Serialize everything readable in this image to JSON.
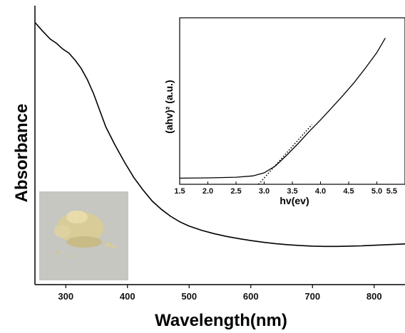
{
  "chart_data": [
    {
      "type": "line",
      "title": "",
      "xlabel": "Wavelength(nm)",
      "ylabel": "Absorbance",
      "xlim": [
        250,
        850
      ],
      "ylim": [
        0,
        1
      ],
      "x_ticks": [
        300,
        400,
        500,
        600,
        700,
        800
      ],
      "y_ticks": [],
      "grid": false,
      "legend": "none",
      "series": [
        {
          "x": [
            250,
            262,
            275,
            285,
            295,
            305,
            315,
            325,
            335,
            345,
            355,
            365,
            380,
            395,
            410,
            425,
            440,
            455,
            470,
            485,
            500,
            520,
            540,
            560,
            580,
            600,
            620,
            640,
            660,
            680,
            700,
            720,
            740,
            760,
            780,
            800,
            820,
            850
          ],
          "y": [
            0.94,
            0.91,
            0.88,
            0.865,
            0.845,
            0.83,
            0.805,
            0.775,
            0.735,
            0.685,
            0.625,
            0.565,
            0.5,
            0.44,
            0.385,
            0.34,
            0.3,
            0.27,
            0.245,
            0.225,
            0.21,
            0.195,
            0.183,
            0.173,
            0.165,
            0.158,
            0.152,
            0.147,
            0.143,
            0.14,
            0.138,
            0.137,
            0.137,
            0.138,
            0.139,
            0.141,
            0.143,
            0.146
          ],
          "color": "#000000"
        }
      ],
      "inset_image": {
        "description_type": "photo",
        "colors": {
          "background": "#c6c7c1",
          "powder": "#d9cc98",
          "powder_highlight": "#efe3b3"
        }
      }
    },
    {
      "type": "line",
      "title": "",
      "xlabel": "hv(ev)",
      "ylabel": "(ahv)² (a.u.)",
      "xlim": [
        1.5,
        5.5
      ],
      "ylim": [
        0,
        1
      ],
      "x_ticks": [
        "1.5",
        "2.0",
        "2.5",
        "3.0",
        "3.5",
        "4.0",
        "4.5",
        "5.0",
        "5.5"
      ],
      "grid": false,
      "legend": "none",
      "series": [
        {
          "style": "solid",
          "x": [
            1.5,
            2.0,
            2.5,
            2.8,
            3.0,
            3.2,
            3.4,
            3.6,
            3.8,
            4.0,
            4.2,
            4.4,
            4.6,
            4.8,
            5.0,
            5.15
          ],
          "y": [
            0.04,
            0.042,
            0.046,
            0.055,
            0.075,
            0.12,
            0.19,
            0.265,
            0.345,
            0.42,
            0.5,
            0.58,
            0.665,
            0.76,
            0.86,
            0.955
          ]
        },
        {
          "style": "dotted",
          "x": [
            2.9,
            3.85
          ],
          "y": [
            0.0,
            0.39
          ]
        }
      ]
    }
  ]
}
